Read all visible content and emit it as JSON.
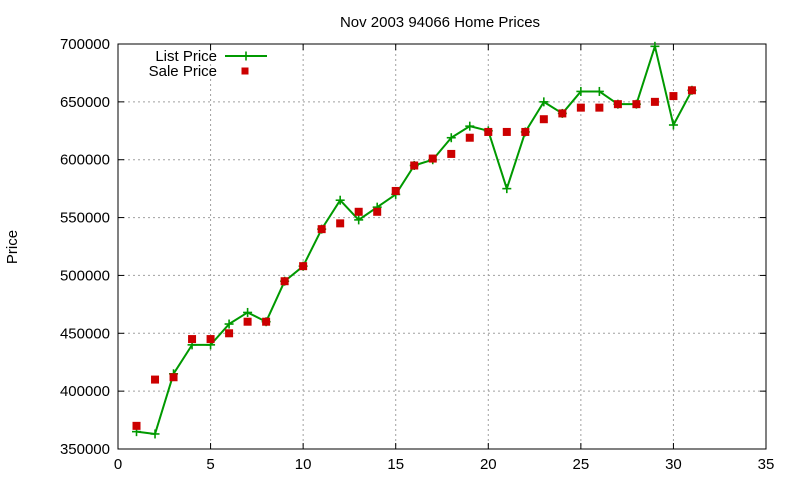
{
  "chart_data": {
    "type": "line",
    "title": "Nov 2003 94066 Home Prices",
    "xlabel": "",
    "ylabel": "Price",
    "xlim": [
      0,
      35
    ],
    "ylim": [
      350000,
      700000
    ],
    "x_ticks": [
      0,
      5,
      10,
      15,
      20,
      25,
      30,
      35
    ],
    "y_ticks": [
      350000,
      400000,
      450000,
      500000,
      550000,
      600000,
      650000,
      700000
    ],
    "grid": true,
    "legend_position": "top-left",
    "series": [
      {
        "name": "List Price",
        "style": "line-with-plus-markers",
        "color": "#009900",
        "x": [
          1,
          2,
          3,
          4,
          5,
          6,
          7,
          8,
          9,
          10,
          11,
          12,
          13,
          14,
          15,
          16,
          17,
          18,
          19,
          20,
          21,
          22,
          23,
          24,
          25,
          26,
          27,
          28,
          29,
          30,
          31
        ],
        "y": [
          365000,
          363000,
          415000,
          440000,
          440000,
          458000,
          468000,
          460000,
          495000,
          508000,
          540000,
          565000,
          548000,
          559000,
          570000,
          595000,
          600000,
          619000,
          629000,
          625000,
          575000,
          624000,
          650000,
          640000,
          659000,
          659000,
          648000,
          648000,
          698000,
          630000,
          660000
        ]
      },
      {
        "name": "Sale Price",
        "style": "square-markers",
        "color": "#cc0000",
        "x": [
          1,
          2,
          3,
          4,
          5,
          6,
          7,
          8,
          9,
          10,
          11,
          12,
          13,
          14,
          15,
          16,
          17,
          18,
          19,
          20,
          21,
          22,
          23,
          24,
          25,
          26,
          27,
          28,
          29,
          30,
          31
        ],
        "y": [
          370000,
          410000,
          412000,
          445000,
          445000,
          450000,
          460000,
          460000,
          495000,
          508000,
          540000,
          545000,
          555000,
          555000,
          573000,
          595000,
          601000,
          605000,
          619000,
          624000,
          624000,
          624000,
          635000,
          640000,
          645000,
          645000,
          648000,
          648000,
          650000,
          655000,
          660000
        ]
      }
    ]
  }
}
